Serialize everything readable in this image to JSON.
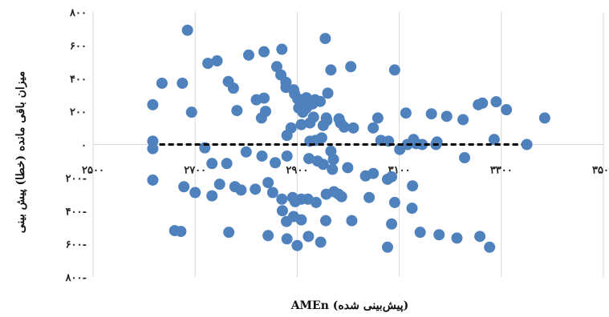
{
  "chart_data": {
    "type": "scatter",
    "title": "",
    "xlabel": "(پیش‌بینی شده) AMEn",
    "ylabel": "میزان باقی مانده (خطا) پیش بینی",
    "x_ticks": [
      "۲۵۰۰",
      "۲۷۰۰",
      "۲۹۰۰",
      "۳۱۰۰",
      "۳۳۰۰",
      "۳۵۰۰"
    ],
    "y_ticks": [
      "۸۰۰",
      "۶۰۰",
      "۴۰۰",
      "۲۰۰",
      "۰",
      "۲۰۰-",
      "۴۰۰-",
      "۶۰۰-",
      "۸۰۰-"
    ],
    "xlim": [
      2500,
      3500
    ],
    "ylim": [
      -800,
      800
    ],
    "grid": "vertical",
    "point_color": "#4f81bd",
    "zero_line_color": "#000000",
    "zero_line": {
      "x": [
        2630,
        3340
      ],
      "y": 0
    },
    "points": [
      [
        2835,
        560
      ],
      [
        2955,
        640
      ],
      [
        2685,
        690
      ],
      [
        2635,
        370
      ],
      [
        2675,
        370
      ],
      [
        2725,
        490
      ],
      [
        2743,
        505
      ],
      [
        2805,
        540
      ],
      [
        2870,
        575
      ],
      [
        2860,
        470
      ],
      [
        2765,
        380
      ],
      [
        2775,
        340
      ],
      [
        2820,
        270
      ],
      [
        2835,
        280
      ],
      [
        2868,
        420
      ],
      [
        2878,
        375
      ],
      [
        2893,
        330
      ],
      [
        2895,
        305
      ],
      [
        2901,
        275
      ],
      [
        2908,
        270
      ],
      [
        2918,
        282
      ],
      [
        2935,
        270
      ],
      [
        2945,
        260
      ],
      [
        2878,
        345
      ],
      [
        2918,
        220
      ],
      [
        2930,
        245
      ],
      [
        2960,
        310
      ],
      [
        2966,
        450
      ],
      [
        2617,
        240
      ],
      [
        2693,
        195
      ],
      [
        2782,
        205
      ],
      [
        2838,
        200
      ],
      [
        2830,
        160
      ],
      [
        2903,
        220
      ],
      [
        2911,
        195
      ],
      [
        2908,
        120
      ],
      [
        2925,
        130
      ],
      [
        2888,
        100
      ],
      [
        2932,
        165
      ],
      [
        2982,
        155
      ],
      [
        2985,
        130
      ],
      [
        2992,
        105
      ],
      [
        3010,
        100
      ],
      [
        3049,
        100
      ],
      [
        3058,
        160
      ],
      [
        3091,
        450
      ],
      [
        3113,
        190
      ],
      [
        3163,
        185
      ],
      [
        3174,
        15
      ],
      [
        3193,
        170
      ],
      [
        3225,
        150
      ],
      [
        3255,
        240
      ],
      [
        3263,
        250
      ],
      [
        3290,
        258
      ],
      [
        3310,
        210
      ],
      [
        3385,
        160
      ],
      [
        3005,
        470
      ],
      [
        2617,
        20
      ],
      [
        2925,
        20
      ],
      [
        2948,
        40
      ],
      [
        2880,
        55
      ],
      [
        2958,
        145
      ],
      [
        2951,
        115
      ],
      [
        2957,
        160
      ],
      [
        3064,
        25
      ],
      [
        3079,
        20
      ],
      [
        2936,
        25
      ],
      [
        3128,
        30
      ],
      [
        3133,
        5
      ],
      [
        3101,
        -30
      ],
      [
        2617,
        -25
      ],
      [
        2719,
        -20
      ],
      [
        2733,
        -115
      ],
      [
        2762,
        -115
      ],
      [
        2800,
        -45
      ],
      [
        2831,
        -70
      ],
      [
        2857,
        -110
      ],
      [
        2880,
        -70
      ],
      [
        2923,
        -85
      ],
      [
        2940,
        -100
      ],
      [
        2951,
        -120
      ],
      [
        2966,
        -40
      ],
      [
        2999,
        -140
      ],
      [
        2969,
        -150
      ],
      [
        3034,
        -190
      ],
      [
        3049,
        -175
      ],
      [
        2971,
        -90
      ],
      [
        3085,
        -195
      ],
      [
        3077,
        -210
      ],
      [
        3126,
        -250
      ],
      [
        3116,
        0
      ],
      [
        3145,
        0
      ],
      [
        3172,
        0
      ],
      [
        3228,
        -80
      ],
      [
        3286,
        30
      ],
      [
        3350,
        0
      ],
      [
        2617,
        -215
      ],
      [
        2678,
        -255
      ],
      [
        2700,
        -290
      ],
      [
        2733,
        -310
      ],
      [
        2748,
        -240
      ],
      [
        2778,
        -255
      ],
      [
        2790,
        -275
      ],
      [
        2818,
        -270
      ],
      [
        2843,
        -230
      ],
      [
        2852,
        -290
      ],
      [
        2870,
        -330
      ],
      [
        2891,
        -320
      ],
      [
        2896,
        -345
      ],
      [
        2908,
        -330
      ],
      [
        2921,
        -330
      ],
      [
        2937,
        -350
      ],
      [
        2957,
        -300
      ],
      [
        2972,
        -285
      ],
      [
        2987,
        -315
      ],
      [
        2981,
        -300
      ],
      [
        3041,
        -320
      ],
      [
        3091,
        -350
      ],
      [
        3125,
        -385
      ],
      [
        2871,
        -400
      ],
      [
        2893,
        -435
      ],
      [
        2879,
        -465
      ],
      [
        2908,
        -455
      ],
      [
        2956,
        -460
      ],
      [
        3007,
        -460
      ],
      [
        3085,
        -480
      ],
      [
        3141,
        -530
      ],
      [
        3178,
        -545
      ],
      [
        3213,
        -565
      ],
      [
        3258,
        -555
      ],
      [
        2660,
        -520
      ],
      [
        2672,
        -525
      ],
      [
        2766,
        -530
      ],
      [
        2843,
        -550
      ],
      [
        2880,
        -570
      ],
      [
        2900,
        -610
      ],
      [
        3077,
        -620
      ],
      [
        3277,
        -620
      ],
      [
        2946,
        -590
      ],
      [
        2922,
        -555
      ]
    ]
  }
}
